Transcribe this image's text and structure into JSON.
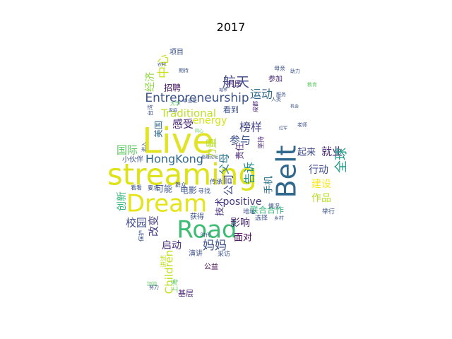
{
  "chart_data": {
    "type": "wordcloud",
    "title": "2017",
    "colormap": "viridis",
    "background": "#ffffff",
    "words": [
      {
        "text": "Live",
        "weight": 1.0,
        "color": "#e1e326"
      },
      {
        "text": "streaming",
        "weight": 0.95,
        "color": "#dde318"
      },
      {
        "text": "Belt",
        "weight": 0.85,
        "color": "#30688e"
      },
      {
        "text": "Road",
        "weight": 0.8,
        "color": "#3dbc74"
      },
      {
        "text": "Dream",
        "weight": 0.8,
        "color": "#e5e419"
      },
      {
        "text": "Entrepreneurship",
        "weight": 0.45,
        "color": "#3b528b"
      },
      {
        "text": "HongKong",
        "weight": 0.45,
        "color": "#31688e"
      },
      {
        "text": "Traditional",
        "weight": 0.4,
        "color": "#bddf26"
      },
      {
        "text": "Children",
        "weight": 0.4,
        "color": "#c2df23"
      },
      {
        "text": "energy",
        "weight": 0.35,
        "color": "#d5e21a"
      },
      {
        "text": "positive",
        "weight": 0.35,
        "color": "#443983"
      },
      {
        "text": "航天",
        "weight": 0.42,
        "color": "#404688"
      },
      {
        "text": "中心",
        "weight": 0.42,
        "color": "#cae11f"
      },
      {
        "text": "运动",
        "weight": 0.4,
        "color": "#31688e"
      },
      {
        "text": "感受",
        "weight": 0.38,
        "color": "#482576"
      },
      {
        "text": "妈妈",
        "weight": 0.4,
        "color": "#3b528b"
      },
      {
        "text": "国际",
        "weight": 0.35,
        "color": "#5ec962"
      },
      {
        "text": "榜样",
        "weight": 0.38,
        "color": "#414487"
      },
      {
        "text": "参与",
        "weight": 0.36,
        "color": "#3b528b"
      },
      {
        "text": "就业",
        "weight": 0.38,
        "color": "#482878"
      },
      {
        "text": "全球",
        "weight": 0.4,
        "color": "#1f9e89"
      },
      {
        "text": "父母",
        "weight": 0.36,
        "color": "#2a788e"
      },
      {
        "text": "力量",
        "weight": 0.34,
        "color": "#b5de2b"
      },
      {
        "text": "起来",
        "weight": 0.3,
        "color": "#3e4989"
      },
      {
        "text": "行动",
        "weight": 0.34,
        "color": "#3e4989"
      },
      {
        "text": "建设",
        "weight": 0.34,
        "color": "#fde725"
      },
      {
        "text": "告诉",
        "weight": 0.38,
        "color": "#21918c"
      },
      {
        "text": "公司",
        "weight": 0.36,
        "color": "#3e4989"
      },
      {
        "text": "技术",
        "weight": 0.3,
        "color": "#46327e"
      },
      {
        "text": "校园",
        "weight": 0.34,
        "color": "#3e4989"
      },
      {
        "text": "改变",
        "weight": 0.34,
        "color": "#433e85"
      },
      {
        "text": "启动",
        "weight": 0.32,
        "color": "#472d7b"
      },
      {
        "text": "作品",
        "weight": 0.32,
        "color": "#b8de29"
      },
      {
        "text": "创新",
        "weight": 0.3,
        "color": "#35b779"
      },
      {
        "text": "影响",
        "weight": 0.3,
        "color": "#482173"
      },
      {
        "text": "面对",
        "weight": 0.28,
        "color": "#440154"
      },
      {
        "text": "联合合作",
        "weight": 0.26,
        "color": "#35b779"
      },
      {
        "text": "经济",
        "weight": 0.3,
        "color": "#8fd744"
      },
      {
        "text": "招聘",
        "weight": 0.26,
        "color": "#471063"
      },
      {
        "text": "手机",
        "weight": 0.3,
        "color": "#2c728e"
      },
      {
        "text": "可能",
        "weight": 0.26,
        "color": "#3b528b"
      },
      {
        "text": "电影",
        "weight": 0.24,
        "color": "#3b528b"
      },
      {
        "text": "美国",
        "weight": 0.24,
        "color": "#31688e"
      },
      {
        "text": "看到",
        "weight": 0.22,
        "color": "#3b528b"
      },
      {
        "text": "项目",
        "weight": 0.2,
        "color": "#3b528b"
      },
      {
        "text": "村民",
        "weight": 0.2,
        "color": "#482576"
      },
      {
        "text": "参加",
        "weight": 0.2,
        "color": "#482576"
      },
      {
        "text": "小伙伴",
        "weight": 0.22,
        "color": "#3b528b"
      },
      {
        "text": "获得",
        "weight": 0.2,
        "color": "#3b528b"
      },
      {
        "text": "演讲",
        "weight": 0.2,
        "color": "#3b528b"
      },
      {
        "text": "公益",
        "weight": 0.2,
        "color": "#440154"
      },
      {
        "text": "基层",
        "weight": 0.22,
        "color": "#482576"
      },
      {
        "text": "地址",
        "weight": 0.18,
        "color": "#3b528b"
      },
      {
        "text": "选择",
        "weight": 0.16,
        "color": "#3b528b"
      },
      {
        "text": "举行",
        "weight": 0.16,
        "color": "#3b528b"
      },
      {
        "text": "寻找",
        "weight": 0.16,
        "color": "#3b528b"
      },
      {
        "text": "传承",
        "weight": 0.16,
        "color": "#3b528b"
      },
      {
        "text": "母亲",
        "weight": 0.14,
        "color": "#3b528b"
      },
      {
        "text": "坚持",
        "weight": 0.16,
        "color": "#482576"
      },
      {
        "text": "情况",
        "weight": 0.14,
        "color": "#3b528b"
      },
      {
        "text": "乡村",
        "weight": 0.12,
        "color": "#3b528b"
      },
      {
        "text": "群众",
        "weight": 0.14,
        "color": "#3b528b"
      },
      {
        "text": "成都",
        "weight": 0.14,
        "color": "#482576"
      },
      {
        "text": "责任",
        "weight": 0.22,
        "color": "#482576"
      },
      {
        "text": "上海",
        "weight": 0.18,
        "color": "#5ec962"
      },
      {
        "text": "看看",
        "weight": 0.14,
        "color": "#3b528b"
      },
      {
        "text": "要求",
        "weight": 0.14,
        "color": "#3b528b"
      },
      {
        "text": "加油",
        "weight": 0.14,
        "color": "#5ec962"
      },
      {
        "text": "采访",
        "weight": 0.14,
        "color": "#3b528b"
      },
      {
        "text": "讲述",
        "weight": 0.14,
        "color": "#c2df23"
      },
      {
        "text": "保护",
        "weight": 0.14,
        "color": "#3b528b"
      },
      {
        "text": "台湾",
        "weight": 0.14,
        "color": "#3b528b"
      },
      {
        "text": "毕业生",
        "weight": 0.12,
        "color": "#3b528b"
      },
      {
        "text": "大学",
        "weight": 0.12,
        "color": "#5ec962"
      },
      {
        "text": "人类",
        "weight": 0.12,
        "color": "#3b528b"
      },
      {
        "text": "助力",
        "weight": 0.12,
        "color": "#3b528b"
      },
      {
        "text": "期待",
        "weight": 0.12,
        "color": "#3b528b"
      },
      {
        "text": "城市",
        "weight": 0.12,
        "color": "#3b528b"
      },
      {
        "text": "农村",
        "weight": 0.12,
        "color": "#3b528b"
      },
      {
        "text": "机会",
        "weight": 0.12,
        "color": "#3b528b"
      },
      {
        "text": "同心",
        "weight": 0.12,
        "color": "#5ec962"
      },
      {
        "text": "家庭",
        "weight": 0.12,
        "color": "#3b528b"
      },
      {
        "text": "高峰论坛",
        "weight": 0.1,
        "color": "#3b528b"
      },
      {
        "text": "进入",
        "weight": 0.12,
        "color": "#3b528b"
      },
      {
        "text": "老师",
        "weight": 0.12,
        "color": "#3b528b"
      },
      {
        "text": "努力",
        "weight": 0.12,
        "color": "#3b528b"
      },
      {
        "text": "红军",
        "weight": 0.1,
        "color": "#3b528b"
      },
      {
        "text": "教育",
        "weight": 0.12,
        "color": "#5ec962"
      },
      {
        "text": "服务",
        "weight": 0.12,
        "color": "#3b528b"
      },
      {
        "text": "时代",
        "weight": 0.12,
        "color": "#3b528b"
      }
    ]
  }
}
